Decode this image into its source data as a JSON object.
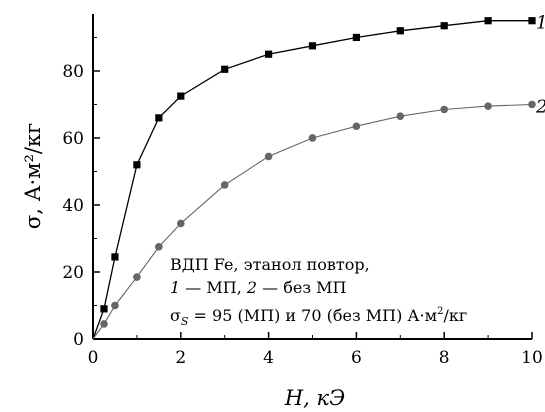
{
  "chart_data": {
    "type": "line",
    "xlabel": "H, кЭ",
    "ylabel": "σ, А·м²/кг",
    "xlim": [
      0,
      10
    ],
    "ylim": [
      0,
      97
    ],
    "xticks": [
      0,
      2,
      4,
      6,
      8,
      10
    ],
    "yticks": [
      0,
      20,
      40,
      60,
      80
    ],
    "xtick_labels": [
      "0",
      "2",
      "4",
      "6",
      "8",
      "10"
    ],
    "ytick_labels": [
      "0",
      "20",
      "40",
      "60",
      "80"
    ],
    "grid": false,
    "series": [
      {
        "name": "1",
        "marker": "square",
        "color": "#000000",
        "x": [
          0,
          0.25,
          0.5,
          1,
          1.5,
          2,
          3,
          4,
          5,
          6,
          7,
          8,
          9,
          10
        ],
        "y": [
          0,
          9,
          24.5,
          52,
          66,
          72.5,
          80.5,
          85,
          87.5,
          90,
          92,
          93.5,
          95,
          95
        ]
      },
      {
        "name": "2",
        "marker": "circle",
        "color": "#666666",
        "x": [
          0,
          0.25,
          0.5,
          1,
          1.5,
          2,
          3,
          4,
          5,
          6,
          7,
          8,
          9,
          10
        ],
        "y": [
          0,
          4.5,
          10,
          18.5,
          27.5,
          34.5,
          46,
          54.5,
          60,
          63.5,
          66.5,
          68.5,
          69.5,
          70
        ]
      }
    ],
    "annotations": {
      "line1": "ВДП Fe, этанол повтор,",
      "line2_a": "1",
      "line2_b": " — МП, ",
      "line2_c": "2",
      "line2_d": " — без МП",
      "line3_sigma": "σ",
      "line3_sub": "S",
      "line3_text": " = 95 (МП) и 70 (без МП) А·м",
      "line3_sup": "2",
      "line3_end": "/кг"
    }
  }
}
